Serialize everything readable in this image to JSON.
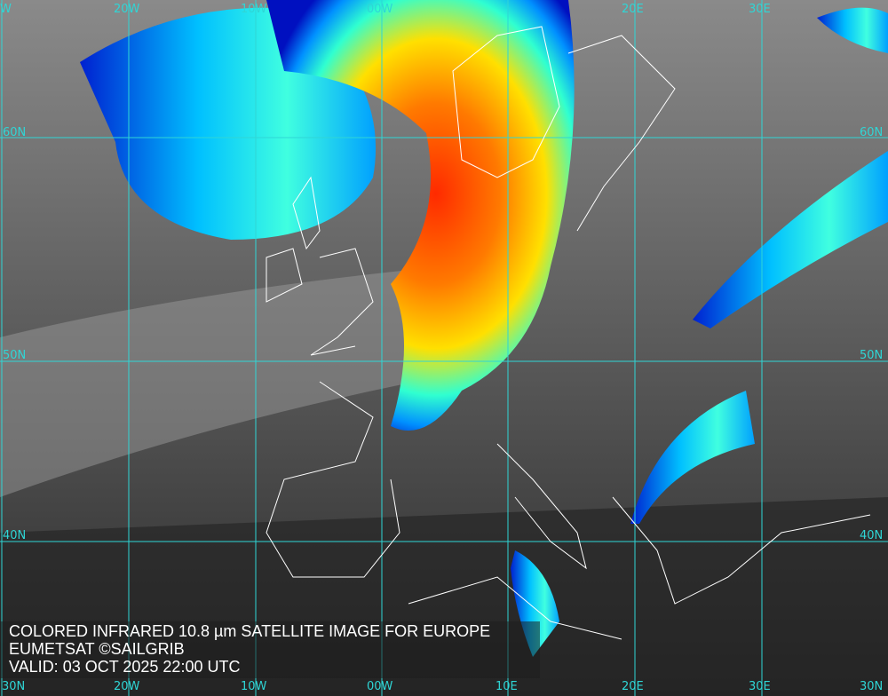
{
  "map": {
    "type": "satellite-image",
    "colormap": [
      "#0000c8",
      "#00a0ff",
      "#00ffff",
      "#ffff00",
      "#ff8000",
      "#ff2000"
    ],
    "grid_color": "#2fd6d6",
    "coastline_color": "#ffffff"
  },
  "labels": {
    "top": [
      "W",
      "20W",
      "10W",
      "00W",
      "20E",
      "30E"
    ],
    "bottom": [
      "30N",
      "20W",
      "10W",
      "00W",
      "10E",
      "20E",
      "30E",
      "30N"
    ],
    "left": [
      "60N",
      "50N",
      "40N"
    ],
    "right": [
      "60N",
      "50N",
      "40N"
    ]
  },
  "caption": {
    "line1": "COLORED INFRARED 10.8 µm SATELLITE IMAGE FOR EUROPE",
    "line2": "EUMETSAT ©SAILGRIB",
    "line3": "VALID:  03 OCT 2025 22:00 UTC"
  }
}
